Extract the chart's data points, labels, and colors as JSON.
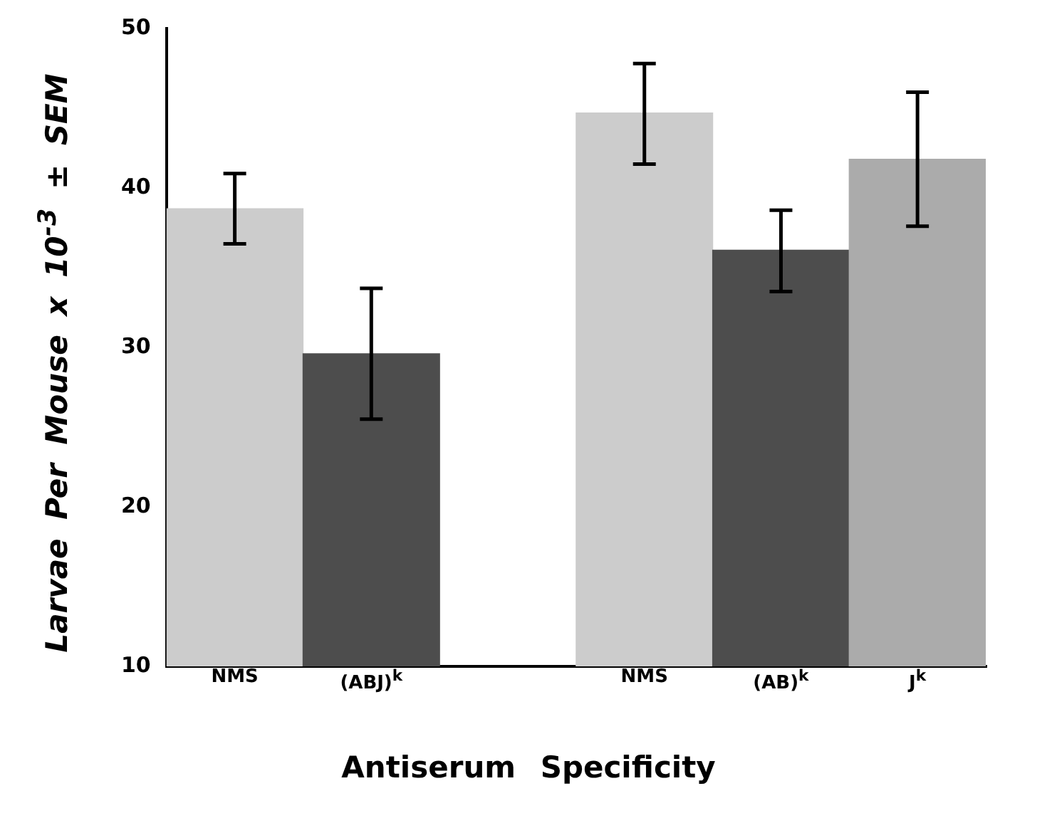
{
  "chart_data": {
    "type": "bar",
    "xlabel": "Antiserum Specificity",
    "ylabel": "Larvae Per Mouse x 10$^{-3}$ ± SEM",
    "categories": [
      "NMS",
      "(ABJ)$^{k}$",
      null,
      "NMS",
      "(AB)$^{k}$",
      "J$^{k}$"
    ],
    "values": [
      38.7,
      29.6,
      null,
      44.7,
      36.1,
      41.8
    ],
    "colors": [
      "#cccccc",
      "#4d4d4d",
      "#ffffff",
      "#cccccc",
      "#4d4d4d",
      "#ababab"
    ],
    "errors": [
      [
        36.5,
        40.9
      ],
      [
        25.5,
        33.7
      ],
      null,
      [
        41.5,
        47.8
      ],
      [
        33.5,
        38.6
      ],
      [
        37.6,
        46.0
      ]
    ],
    "ylim": [
      10,
      50
    ],
    "yticks": [
      10,
      20,
      30,
      40,
      50
    ],
    "grid": false,
    "legend": false
  }
}
